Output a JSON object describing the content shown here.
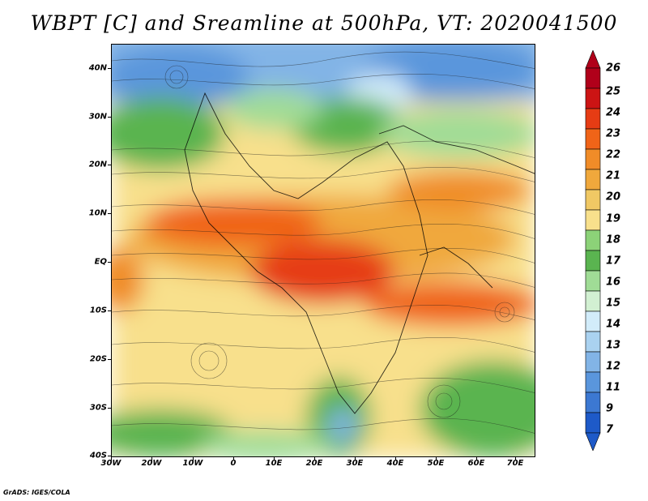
{
  "title": "WBPT [C] and Sreamline at 500hPa, VT: 2020041500",
  "footer": "GrADS: IGES/COLA",
  "y_ticks": [
    "40N",
    "30N",
    "20N",
    "10N",
    "EQ",
    "10S",
    "20S",
    "30S",
    "40S"
  ],
  "x_ticks": [
    "30W",
    "20W",
    "10W",
    "0",
    "10E",
    "20E",
    "30E",
    "40E",
    "50E",
    "60E",
    "70E"
  ],
  "colorbar": {
    "labels": [
      "26",
      "25",
      "24",
      "23",
      "22",
      "21",
      "20",
      "19",
      "18",
      "17",
      "16",
      "15",
      "14",
      "13",
      "12",
      "11",
      "9",
      "7"
    ],
    "colors": [
      "#b0001a",
      "#cc1414",
      "#e63c14",
      "#f06418",
      "#f08c28",
      "#f0a83c",
      "#f0c864",
      "#f8e08c",
      "#8cd278",
      "#5ab450",
      "#a0dc96",
      "#d2f0d2",
      "#d2ecfa",
      "#aad2f0",
      "#82b4e6",
      "#5a96dc",
      "#3c78d2",
      "#1e5ac8"
    ]
  }
}
